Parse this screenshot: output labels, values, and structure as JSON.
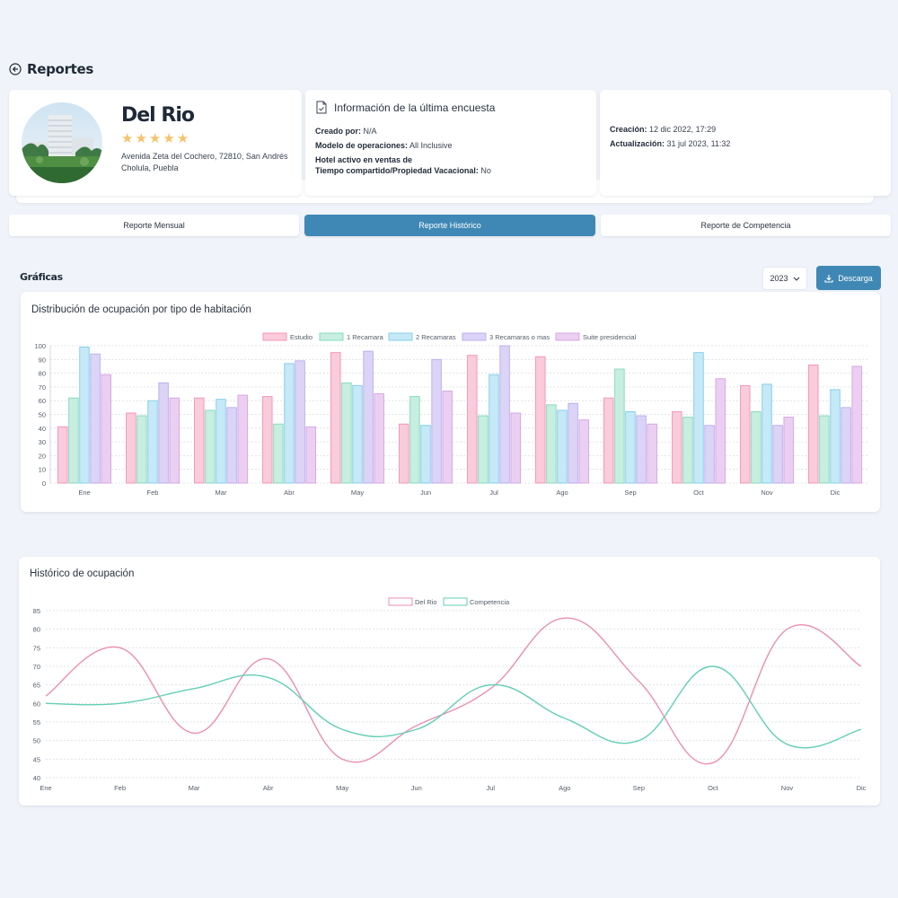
{
  "header": {
    "back_title": "Reportes"
  },
  "hotel": {
    "name": "Del Rio",
    "stars": 5,
    "address": "Avenida Zeta del Cochero, 72810, San Andrés Cholula, Puebla"
  },
  "survey": {
    "title": "Información de la última encuesta",
    "created_by_label": "Creado por:",
    "created_by_value": "N/A",
    "model_label": "Modelo de operaciones:",
    "model_value": "All Inclusive",
    "timeshare_label_1": "Hotel activo en ventas de",
    "timeshare_label_2": "Tiempo compartido/Propiedad Vacacional:",
    "timeshare_value": "No"
  },
  "dates": {
    "creation_label": "Creación:",
    "creation_value": "12 dic 2022, 17:29",
    "update_label": "Actualización:",
    "update_value": "31 jul 2023, 11:32"
  },
  "tabs": [
    {
      "label": "Reporte Mensual",
      "active": false
    },
    {
      "label": "Reporte Histórico",
      "active": true
    },
    {
      "label": "Reporte de Competencia",
      "active": false
    }
  ],
  "section": {
    "title": "Gráficas",
    "year": "2023",
    "download_label": "Descarga"
  },
  "colors": {
    "accent": "#3f88b5",
    "series": [
      "#f48fb1",
      "#7fd8be",
      "#7ecbea",
      "#b8a9ee",
      "#d3a2e2"
    ],
    "series_fill": [
      "#f9cbdb",
      "#c7eedf",
      "#c6e9f7",
      "#dcd4f7",
      "#ebcff2"
    ],
    "line_del_rio": "#ec8fae",
    "line_competencia": "#63cfb4"
  },
  "chart_data": [
    {
      "type": "bar",
      "title": "Distribución de ocupación por tipo de habitación",
      "categories": [
        "Ene",
        "Feb",
        "Mar",
        "Abr",
        "May",
        "Jun",
        "Jul",
        "Ago",
        "Sep",
        "Oct",
        "Nov",
        "Dic"
      ],
      "ylim": [
        0,
        100
      ],
      "yticks": [
        0,
        10,
        20,
        30,
        40,
        50,
        60,
        70,
        80,
        90,
        100
      ],
      "legend_position": "top-center",
      "grid": true,
      "series": [
        {
          "name": "Estudio",
          "values": [
            41,
            51,
            62,
            63,
            95,
            43,
            93,
            92,
            62,
            52,
            71,
            86
          ]
        },
        {
          "name": "1 Recamara",
          "values": [
            62,
            49,
            53,
            43,
            73,
            63,
            49,
            57,
            83,
            48,
            52,
            49
          ]
        },
        {
          "name": "2 Recamaras",
          "values": [
            99,
            60,
            61,
            87,
            71,
            42,
            79,
            53,
            52,
            95,
            72,
            68
          ]
        },
        {
          "name": "3 Recamaras o mas",
          "values": [
            94,
            73,
            55,
            89,
            96,
            90,
            100,
            58,
            49,
            42,
            42,
            55
          ]
        },
        {
          "name": "Suite presidencial",
          "values": [
            79,
            62,
            64,
            41,
            65,
            67,
            51,
            46,
            43,
            76,
            48,
            85
          ]
        }
      ]
    },
    {
      "type": "line",
      "title": "Histórico de ocupación",
      "categories": [
        "Ene",
        "Feb",
        "Mar",
        "Abr",
        "May",
        "Jun",
        "Jul",
        "Ago",
        "Sep",
        "Oct",
        "Nov",
        "Dic"
      ],
      "ylim": [
        40,
        85
      ],
      "yticks": [
        40,
        45,
        50,
        55,
        60,
        65,
        70,
        75,
        80,
        85
      ],
      "legend_position": "top-center",
      "grid": true,
      "series": [
        {
          "name": "Del Rio",
          "values": [
            62,
            75,
            52,
            72,
            45,
            54,
            64,
            83,
            66,
            44,
            80,
            70
          ]
        },
        {
          "name": "Competencia",
          "values": [
            60,
            60,
            64,
            67,
            53,
            53,
            65,
            56,
            50,
            70,
            49,
            53
          ]
        }
      ]
    }
  ]
}
